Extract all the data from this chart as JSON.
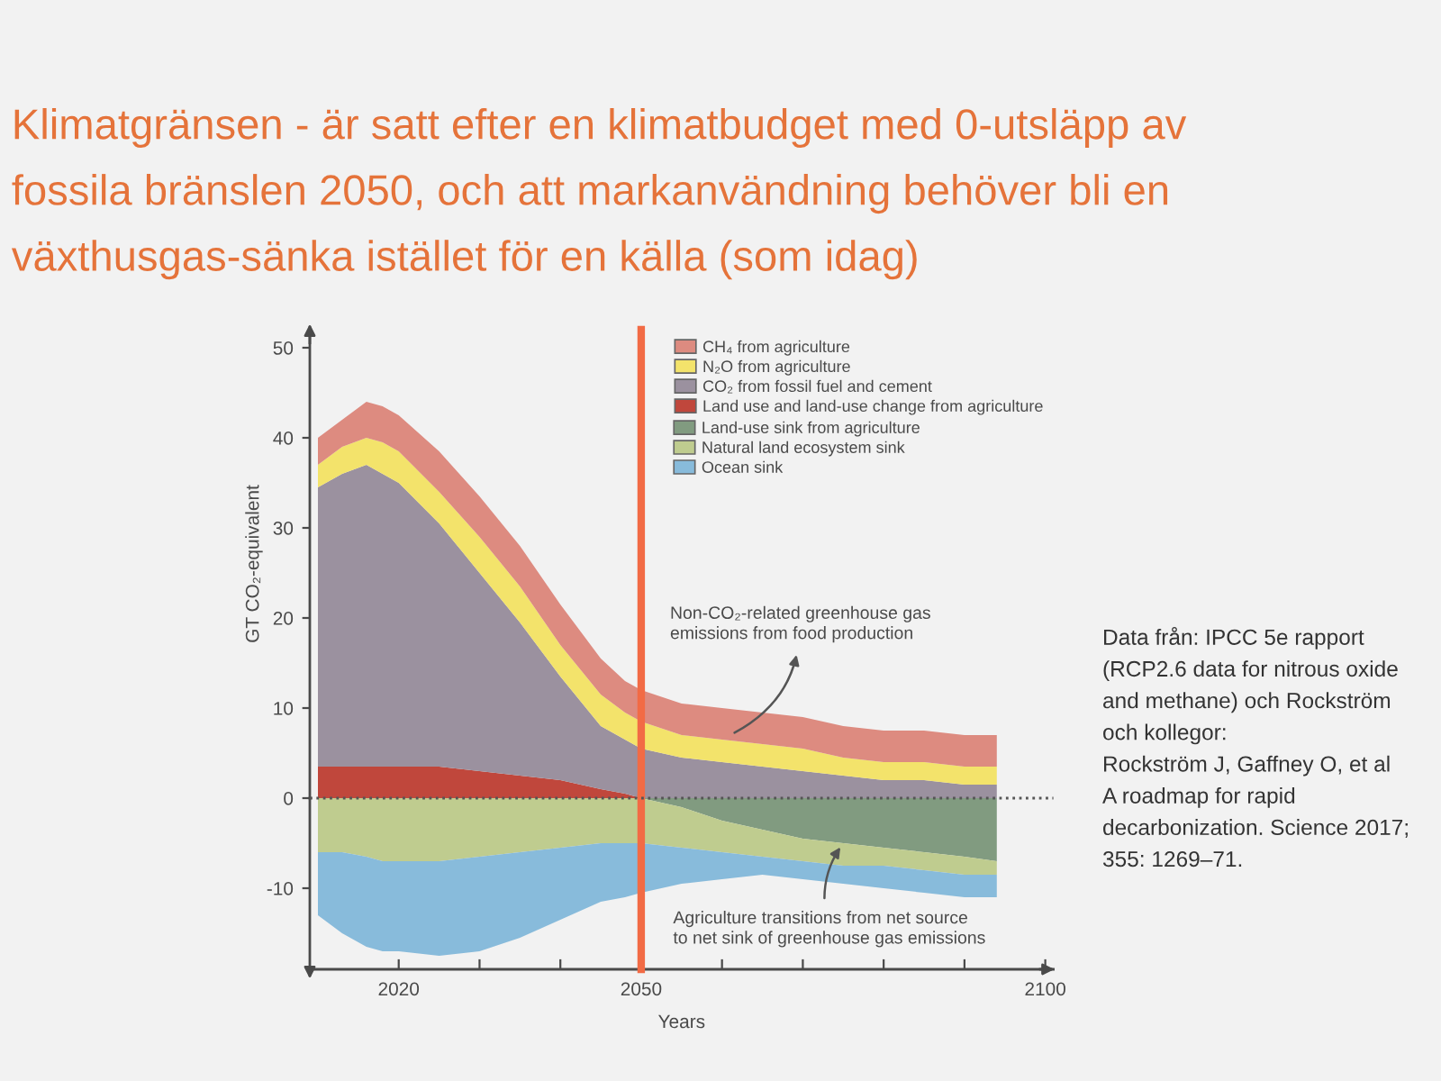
{
  "chart_data": [
    {
      "type": "area",
      "stacked": true,
      "title": "Klimatgränsen - är satt efter en klimatbudget med 0-utsläpp av\nfossila bränslen 2050, och att markanvändning behöver bli en\nväxthusgas-sänka istället för en källa (som idag)",
      "ylabel": "GT CO₂-equivalent",
      "x": [
        2010,
        2013,
        2016,
        2018,
        2020,
        2025,
        2030,
        2035,
        2040,
        2045,
        2048,
        2050,
        2055,
        2060,
        2065,
        2070,
        2075,
        2080,
        2085,
        2090,
        2094
      ],
      "series": [
        {
          "name": "Land use and land-use change from agriculture",
          "color": "#c0473c",
          "values": [
            3.5,
            3.5,
            3.5,
            3.5,
            3.5,
            3.5,
            3,
            2.5,
            2,
            1,
            0.5,
            0,
            0,
            0,
            0,
            0,
            0,
            0,
            0,
            0,
            0
          ]
        },
        {
          "name": "CO₂ from fossil fuel and cement",
          "color": "#9b919f",
          "values": [
            31,
            32.5,
            33.5,
            32.5,
            31.5,
            27,
            22,
            17,
            11.5,
            7,
            6,
            5.5,
            4.5,
            4,
            3.5,
            3,
            2.5,
            2,
            2,
            1.5,
            1.5
          ]
        },
        {
          "name": "N₂O from agriculture",
          "color": "#f3e36b",
          "values": [
            2.5,
            3,
            3,
            3.5,
            3.5,
            3.5,
            4,
            4,
            3.5,
            3.5,
            3,
            3,
            2.5,
            2.5,
            2.5,
            2.5,
            2,
            2,
            2,
            2,
            2
          ]
        },
        {
          "name": "CH₄ from agriculture",
          "color": "#dd8b80",
          "values": [
            3,
            3,
            4,
            4,
            4,
            4.5,
            4.5,
            4.5,
            4.5,
            4,
            3.5,
            3.5,
            3.5,
            3.5,
            3.5,
            3.5,
            3.5,
            3.5,
            3.5,
            3.5,
            3.5
          ]
        }
      ],
      "xlim": [
        2009,
        2101
      ],
      "ylim": [
        0,
        52
      ],
      "yticks": [
        10,
        20,
        30,
        40,
        50
      ],
      "tick_labels": "y",
      "ref_lines": [
        {
          "axis": "x",
          "value": 2050,
          "color": "#f26b45",
          "line_style": "solid"
        }
      ],
      "legend": "top right",
      "annotations": [
        {
          "text": "Non-CO₂-related greenhouse gas\nemissions from food production",
          "x": 2061,
          "y": 7
        },
        "Data från: IPCC 5e rapport\n(RCP2.6 data for nitrous oxide\nand methane) och Rockström\noch kollegor:\nRockström J, Gaffney O, et al\nA roadmap for rapid\ndecarbonization. Science 2017;\n355: 1269–71."
      ]
    },
    {
      "type": "area",
      "stacked": true,
      "xlabel": "Years",
      "x": [
        2010,
        2013,
        2016,
        2018,
        2020,
        2025,
        2030,
        2035,
        2040,
        2045,
        2048,
        2050,
        2055,
        2060,
        2065,
        2070,
        2075,
        2080,
        2085,
        2090,
        2094
      ],
      "series": [
        {
          "name": "Land-use sink from agriculture",
          "color": "#819b80",
          "values": [
            0,
            0,
            0,
            0,
            0,
            0,
            0,
            0,
            0,
            0,
            0,
            0,
            -1,
            -2.5,
            -3.5,
            -4.5,
            -5,
            -5.5,
            -6,
            -6.5,
            -7
          ]
        },
        {
          "name": "Natural land ecosystem sink",
          "color": "#bfcc8f",
          "values": [
            -6,
            -6,
            -6.5,
            -7,
            -7,
            -7,
            -6.5,
            -6,
            -5.5,
            -5,
            -5,
            -5,
            -4.5,
            -3.5,
            -3,
            -2.5,
            -2.5,
            -2,
            -2,
            -2,
            -1.5
          ]
        },
        {
          "name": "Ocean sink",
          "color": "#88bbdb",
          "values": [
            -7,
            -9,
            -10,
            -10,
            -10,
            -10.5,
            -10.5,
            -9.5,
            -8,
            -6.5,
            -6,
            -5.5,
            -4,
            -3,
            -2,
            -2,
            -2,
            -2.5,
            -2.5,
            -2.5,
            -2.5
          ]
        }
      ],
      "xlim": [
        2009,
        2101
      ],
      "ylim": [
        -19,
        0
      ],
      "xticks": [
        2020,
        {
          "value": 2030,
          "label": null
        },
        {
          "value": 2040,
          "label": null
        },
        2050,
        {
          "value": 2060,
          "label": null
        },
        {
          "value": 2070,
          "label": null
        },
        {
          "value": 2080,
          "label": null
        },
        {
          "value": 2090,
          "label": null
        },
        2100
      ],
      "yticks": [
        -10,
        0
      ],
      "ref_lines": [
        {
          "axis": "x",
          "value": 2050,
          "color": "#f26b45",
          "line_style": "solid"
        },
        {
          "axis": "y",
          "value": 0,
          "color": "#555555",
          "line_style": "dotted"
        }
      ],
      "legend": "top right",
      "annotations": [
        {
          "text": "Agriculture transitions from net source\nto net sink of greenhouse gas emissions",
          "x": 2075,
          "y": -5
        }
      ]
    }
  ]
}
